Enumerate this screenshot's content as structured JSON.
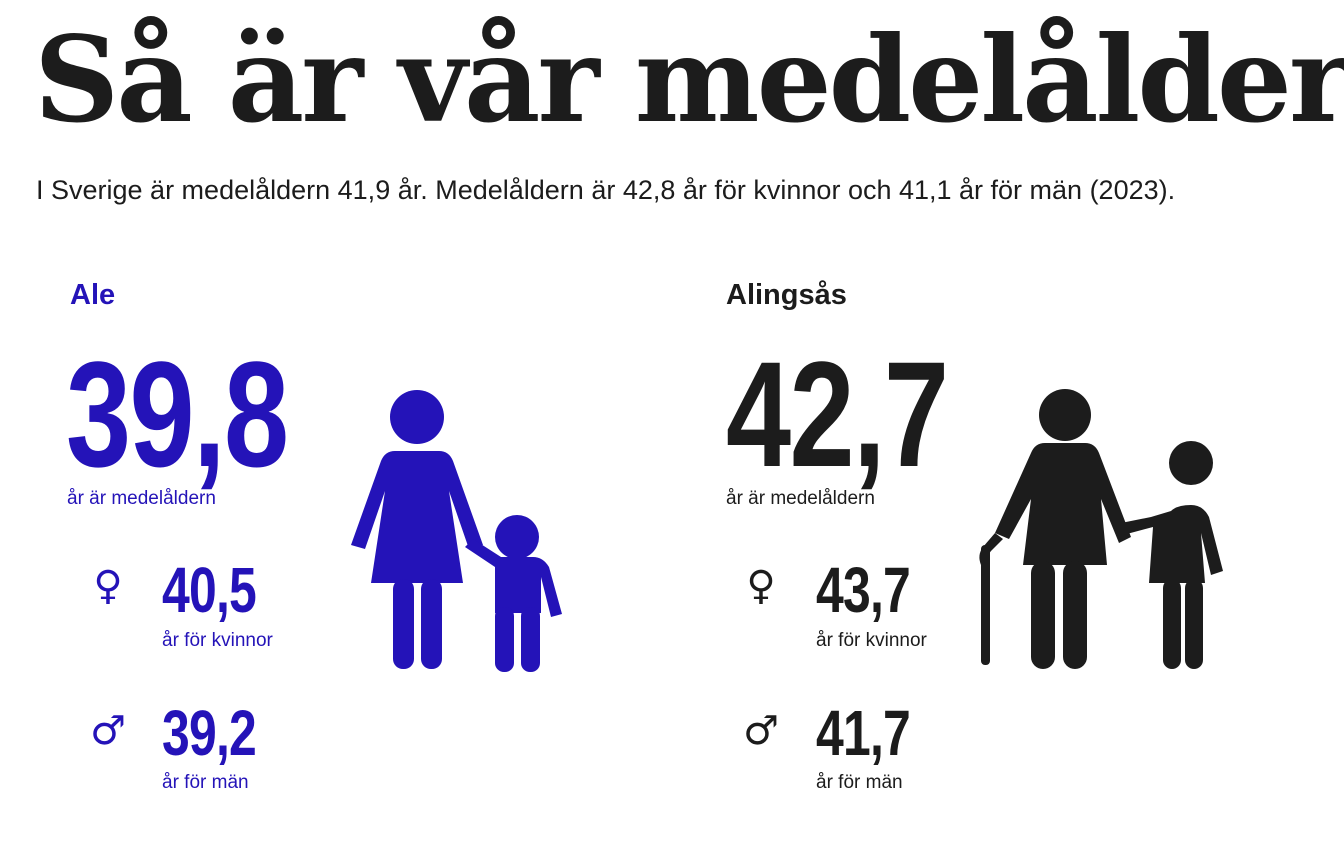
{
  "title": "Så är vår medelålder",
  "intro": "I Sverige är medelåldern 41,9 år. Medelåldern är 42,8 år för kvinnor och 41,1 år för män (2023).",
  "colors": {
    "ale": "#2413b8",
    "alingsas": "#1c1c1c"
  },
  "regions": [
    {
      "name": "Ale",
      "average": "39,8",
      "average_label": "år är medelåldern",
      "women": {
        "icon": "female-symbol-icon",
        "value": "40,5",
        "label": "år för kvinnor"
      },
      "men": {
        "icon": "male-symbol-icon",
        "value": "39,2",
        "label": "år för män"
      },
      "figure_icon": "mother-and-child-icon"
    },
    {
      "name": "Alingsås",
      "average": "42,7",
      "average_label": "år är medelåldern",
      "women": {
        "icon": "female-symbol-icon",
        "value": "43,7",
        "label": "år för kvinnor"
      },
      "men": {
        "icon": "male-symbol-icon",
        "value": "41,7",
        "label": "år för män"
      },
      "figure_icon": "elderly-with-child-icon"
    }
  ]
}
